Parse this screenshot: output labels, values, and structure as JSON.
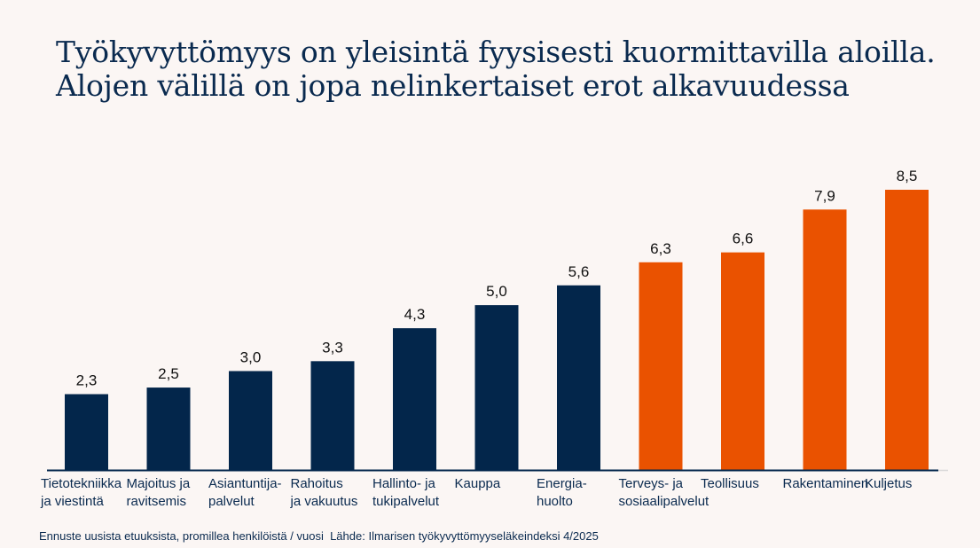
{
  "chart_data": {
    "type": "bar",
    "title": "Työkyvyttömyys on yleisintä fyysisesti kuormittavilla aloilla. Alojen välillä on jopa nelinkertaiset erot alkavuudessa",
    "xlabel": "",
    "ylabel": "",
    "ylim": [
      0,
      8.5
    ],
    "grid": false,
    "legend": "none",
    "categories": [
      [
        "Tietotekniikka",
        "ja viestintä"
      ],
      [
        "Majoitus ja",
        "ravitsemis"
      ],
      [
        "Asiantuntija-",
        "palvelut"
      ],
      [
        "Rahoitus",
        "ja vakuutus"
      ],
      [
        "Hallinto- ja",
        "tukipalvelut"
      ],
      [
        "Kauppa"
      ],
      [
        "Energia-",
        "huolto"
      ],
      [
        "Terveys- ja",
        "sosiaalipalvelut"
      ],
      [
        "Teollisuus"
      ],
      [
        "Rakentaminen"
      ],
      [
        "Kuljetus"
      ]
    ],
    "values": [
      2.3,
      2.5,
      3.0,
      3.3,
      4.3,
      5.0,
      5.6,
      6.3,
      6.6,
      7.9,
      8.5
    ],
    "value_labels": [
      "2,3",
      "2,5",
      "3,0",
      "3,3",
      "4,3",
      "5,0",
      "5,6",
      "6,3",
      "6,6",
      "7,9",
      "8,5"
    ],
    "highlight": [
      false,
      false,
      false,
      false,
      false,
      false,
      false,
      true,
      true,
      true,
      true
    ],
    "colors": {
      "default": "#03264b",
      "highlight": "#ea5200",
      "axis": "#03264b"
    }
  },
  "footer": {
    "note": "Ennuste uusista etuuksista, promillea henkilöistä / vuosi",
    "source": "Lähde: Ilmarisen työkyvyttömyyseläkeindeksi 4/2025"
  }
}
